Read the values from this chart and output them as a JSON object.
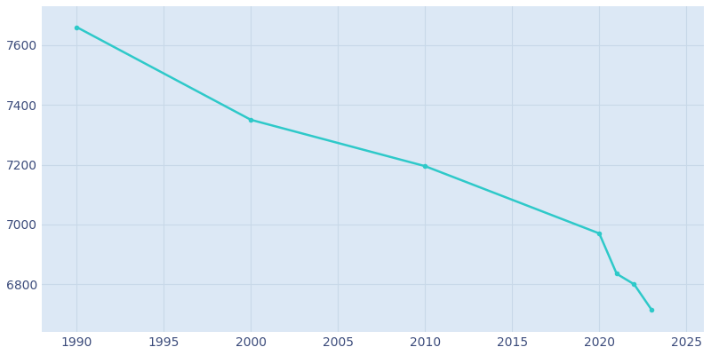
{
  "years": [
    1990,
    2000,
    2010,
    2020,
    2021,
    2022,
    2023
  ],
  "population": [
    7660,
    7350,
    7195,
    6970,
    6835,
    6800,
    6715
  ],
  "line_color": "#2ec9c9",
  "marker_color": "#2ec9c9",
  "plot_bg_color": "#dce8f5",
  "fig_bg_color": "#ffffff",
  "grid_color": "#c8d8e8",
  "text_color": "#3a4a7a",
  "xlim": [
    1988,
    2026
  ],
  "ylim": [
    6640,
    7730
  ],
  "xticks": [
    1990,
    1995,
    2000,
    2005,
    2010,
    2015,
    2020,
    2025
  ],
  "yticks": [
    6800,
    7000,
    7200,
    7400,
    7600
  ],
  "linewidth": 1.8,
  "markersize": 4
}
